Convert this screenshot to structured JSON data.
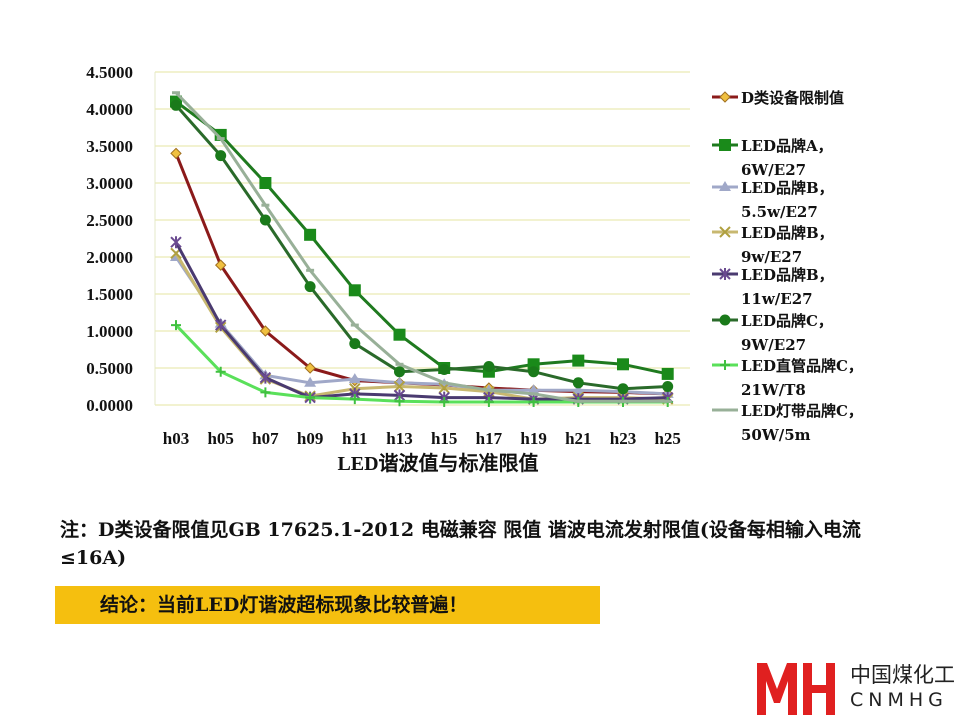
{
  "chart_data": {
    "type": "line",
    "xlabel": "LED谐波值与标准限值",
    "categories": [
      "h03",
      "h05",
      "h07",
      "h09",
      "h11",
      "h13",
      "h15",
      "h17",
      "h19",
      "h21",
      "h23",
      "h25"
    ],
    "ylim": [
      0,
      4.5
    ],
    "yticks": [
      "0.0000",
      "0.5000",
      "1.0000",
      "1.5000",
      "2.0000",
      "2.5000",
      "3.0000",
      "3.5000",
      "4.0000",
      "4.5000"
    ],
    "grid": true,
    "legend_position": "right",
    "series": [
      {
        "name": "D类设备限制值",
        "color": "#8b1a1a",
        "marker": "diamond",
        "marker_color": "#f0c040",
        "values": [
          3.4,
          1.89,
          1.0,
          0.5,
          0.33,
          0.3,
          0.27,
          0.23,
          0.2,
          0.18,
          0.17,
          0.15
        ]
      },
      {
        "name": "LED品牌A，6W/E27",
        "color": "#1f7a1f",
        "marker": "square",
        "marker_color": "#1a8a1a",
        "values": [
          4.1,
          3.65,
          3.0,
          2.3,
          1.55,
          0.95,
          0.5,
          0.45,
          0.55,
          0.6,
          0.55,
          0.42
        ]
      },
      {
        "name": "LED品牌B，5.5w/E27",
        "color": "#a0a8c8",
        "marker": "triangle",
        "marker_color": "#a0a8c8",
        "values": [
          2.0,
          1.1,
          0.4,
          0.3,
          0.35,
          0.3,
          0.28,
          0.2,
          0.2,
          0.2,
          0.18,
          0.15
        ]
      },
      {
        "name": "LED品牌B，9w/E27",
        "color": "#c8b870",
        "marker": "x",
        "marker_color": "#b0a040",
        "values": [
          2.05,
          1.05,
          0.35,
          0.12,
          0.22,
          0.25,
          0.23,
          0.18,
          0.08,
          0.1,
          0.1,
          0.08
        ]
      },
      {
        "name": "LED品牌B，11w/E27",
        "color": "#4a3a70",
        "marker": "star",
        "marker_color": "#6a4a90",
        "values": [
          2.2,
          1.08,
          0.37,
          0.1,
          0.15,
          0.13,
          0.1,
          0.1,
          0.08,
          0.08,
          0.08,
          0.1
        ]
      },
      {
        "name": "LED品牌C，9W/E27",
        "color": "#2a6a2a",
        "marker": "circle",
        "marker_color": "#1a7a1a",
        "values": [
          4.05,
          3.37,
          2.5,
          1.6,
          0.83,
          0.45,
          0.48,
          0.52,
          0.45,
          0.3,
          0.22,
          0.25
        ]
      },
      {
        "name": "LED直管品牌C，21W/T8",
        "color": "#5ae05a",
        "marker": "plus",
        "marker_color": "#40c040",
        "values": [
          1.08,
          0.45,
          0.17,
          0.1,
          0.08,
          0.05,
          0.04,
          0.04,
          0.04,
          0.04,
          0.04,
          0.04
        ]
      },
      {
        "name": "LED灯带品牌C，50W/5m",
        "color": "#98b098",
        "marker": "dash",
        "marker_color": "#98b098",
        "values": [
          4.22,
          3.6,
          2.7,
          1.82,
          1.08,
          0.55,
          0.3,
          0.2,
          0.15,
          0.05,
          0.05,
          0.05
        ]
      }
    ],
    "legend_lines": [
      [
        "D类设备限制值"
      ],
      [
        "LED品牌A，",
        "6W/E27"
      ],
      [
        "LED品牌B，",
        "5.5w/E27"
      ],
      [
        "LED品牌B，",
        "9w/E27"
      ],
      [
        "LED品牌B，",
        "11w/E27"
      ],
      [
        "LED品牌C，",
        "9W/E27"
      ],
      [
        "LED直管品牌C，",
        "21W/T8"
      ],
      [
        "LED灯带品牌C，",
        "50W/5m"
      ]
    ]
  },
  "note": "注：D类设备限值见GB 17625.1-2012 电磁兼容 限值 谐波电流发射限值(设备每相输入电流≤16A)",
  "conclusion": "结论：当前LED灯谐波超标现象比较普遍！",
  "conclusion_color": "#f5bf0f",
  "logo": {
    "cn": "中国煤化工",
    "en": "CNMHG"
  }
}
